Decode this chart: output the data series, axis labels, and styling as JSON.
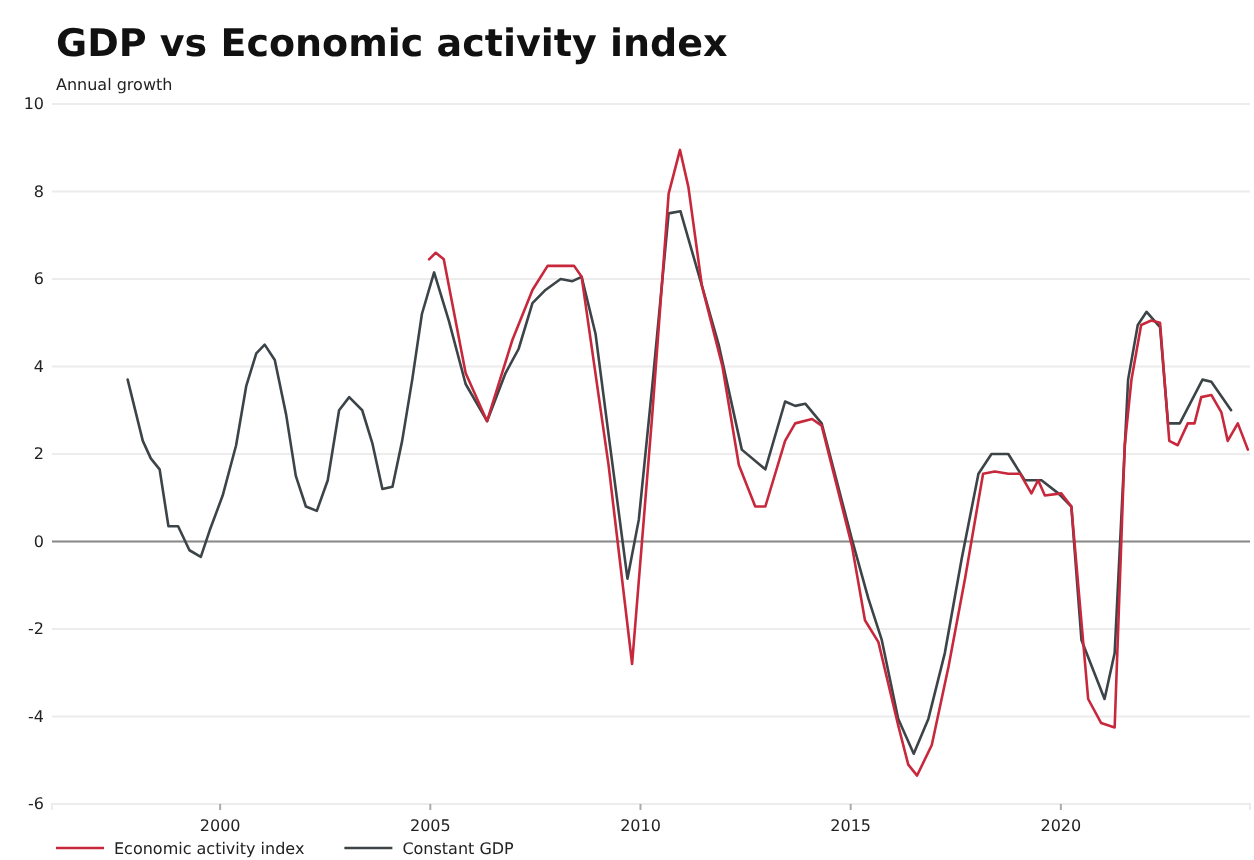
{
  "chart_data": {
    "type": "line",
    "title": "GDP vs Economic activity index",
    "ylabel": "Annual growth",
    "xlim": [
      1996,
      2024.5
    ],
    "xticks": [
      2000,
      2005,
      2010,
      2015,
      2020
    ],
    "ylim": [
      -6,
      10
    ],
    "yticks": [
      -6,
      -4,
      -2,
      0,
      2,
      4,
      6,
      8,
      10
    ],
    "grid": "y",
    "legend": "bottom",
    "line_style": "solid",
    "marker": "none",
    "ref_lines": [
      {
        "axis": "y",
        "value": 0,
        "color": "#8a8a8a"
      }
    ],
    "series": [
      {
        "name": "Economic activity index",
        "color": "#c8283c",
        "x": [
          2004.97,
          2005.13,
          2005.32,
          2005.84,
          2006.35,
          2006.95,
          2007.43,
          2007.79,
          2008.22,
          2008.42,
          2008.6,
          2009.24,
          2009.8,
          2010.28,
          2010.67,
          2010.94,
          2011.14,
          2011.46,
          2011.95,
          2012.34,
          2012.73,
          2012.97,
          2013.44,
          2013.68,
          2014.08,
          2014.31,
          2015.03,
          2015.34,
          2015.66,
          2016.13,
          2016.37,
          2016.58,
          2016.93,
          2017.33,
          2017.72,
          2018.15,
          2018.43,
          2018.75,
          2019.03,
          2019.3,
          2019.46,
          2019.62,
          2020.01,
          2020.25,
          2020.65,
          2020.96,
          2021.28,
          2021.52,
          2021.68,
          2021.91,
          2022.15,
          2022.36,
          2022.58,
          2022.78,
          2023.02,
          2023.18,
          2023.34,
          2023.58,
          2023.82,
          2023.97,
          2024.21,
          2024.45
        ],
        "values": [
          6.45,
          6.6,
          6.45,
          3.85,
          2.75,
          4.6,
          5.75,
          6.3,
          6.3,
          6.3,
          6.05,
          1.75,
          -2.8,
          2.9,
          7.95,
          8.95,
          8.1,
          5.85,
          4.0,
          1.75,
          0.8,
          0.8,
          2.3,
          2.7,
          2.8,
          2.65,
          -0.1,
          -1.8,
          -2.3,
          -4.2,
          -5.1,
          -5.35,
          -4.65,
          -2.85,
          -0.85,
          1.55,
          1.6,
          1.55,
          1.55,
          1.1,
          1.4,
          1.05,
          1.1,
          0.8,
          -3.6,
          -4.15,
          -4.25,
          2.2,
          3.7,
          4.95,
          5.05,
          5.0,
          2.3,
          2.2,
          2.7,
          2.7,
          3.3,
          3.35,
          2.95,
          2.3,
          2.7,
          2.1
        ]
      },
      {
        "name": "Constant GDP",
        "color": "#3c4448",
        "x": [
          1997.8,
          1998.16,
          1998.35,
          1998.56,
          1998.77,
          1999.0,
          1999.27,
          1999.54,
          1999.75,
          2000.06,
          2000.38,
          2000.62,
          2000.86,
          2001.06,
          2001.3,
          2001.57,
          2001.8,
          2002.04,
          2002.3,
          2002.56,
          2002.83,
          2003.07,
          2003.38,
          2003.62,
          2003.86,
          2004.1,
          2004.33,
          2004.57,
          2004.8,
          2005.09,
          2005.44,
          2005.84,
          2006.35,
          2006.79,
          2007.1,
          2007.43,
          2007.74,
          2008.1,
          2008.38,
          2008.6,
          2008.93,
          2009.24,
          2009.69,
          2009.96,
          2010.28,
          2010.67,
          2010.95,
          2011.46,
          2011.86,
          2012.41,
          2012.97,
          2013.44,
          2013.68,
          2013.92,
          2014.31,
          2015.03,
          2015.42,
          2015.74,
          2016.13,
          2016.5,
          2016.85,
          2017.24,
          2017.64,
          2018.04,
          2018.35,
          2018.75,
          2019.14,
          2019.54,
          2019.94,
          2020.25,
          2020.49,
          2021.04,
          2021.28,
          2021.6,
          2021.83,
          2022.04,
          2022.36,
          2022.55,
          2022.83,
          2023.37,
          2023.58,
          2024.05
        ],
        "values": [
          3.7,
          2.3,
          1.9,
          1.65,
          0.35,
          0.35,
          -0.2,
          -0.35,
          0.25,
          1.05,
          2.2,
          3.55,
          4.3,
          4.5,
          4.15,
          2.9,
          1.5,
          0.8,
          0.7,
          1.4,
          3.0,
          3.3,
          3.0,
          2.25,
          1.2,
          1.25,
          2.3,
          3.7,
          5.2,
          6.15,
          5.05,
          3.6,
          2.75,
          3.85,
          4.4,
          5.45,
          5.75,
          6.0,
          5.95,
          6.05,
          4.75,
          2.45,
          -0.85,
          0.5,
          3.55,
          7.5,
          7.55,
          5.85,
          4.5,
          2.1,
          1.65,
          3.2,
          3.1,
          3.15,
          2.7,
          0.05,
          -1.3,
          -2.25,
          -4.05,
          -4.85,
          -4.05,
          -2.55,
          -0.4,
          1.55,
          2.0,
          2.0,
          1.4,
          1.4,
          1.1,
          0.8,
          -2.25,
          -3.6,
          -2.55,
          3.7,
          4.95,
          5.25,
          4.9,
          2.7,
          2.7,
          3.7,
          3.65,
          3.0
        ]
      }
    ]
  }
}
